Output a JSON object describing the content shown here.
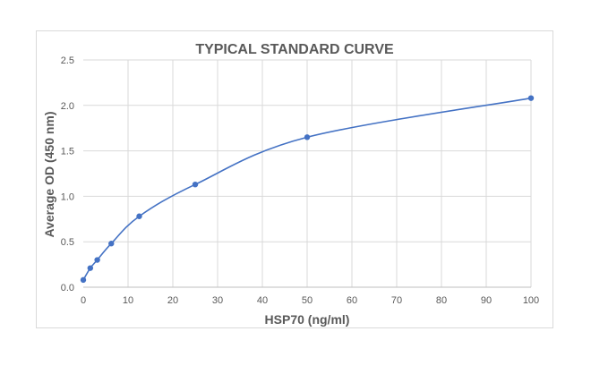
{
  "chart_data": {
    "type": "scatter",
    "title": "TYPICAL STANDARD CURVE",
    "xlabel": "HSP70 (ng/ml)",
    "ylabel": "Average OD (450 nm)",
    "xlim": [
      0,
      100
    ],
    "ylim": [
      0,
      2.5
    ],
    "x_ticks": [
      "0",
      "10",
      "20",
      "30",
      "40",
      "50",
      "60",
      "70",
      "80",
      "90",
      "100"
    ],
    "y_ticks": [
      "0.0",
      "0.5",
      "1.0",
      "1.5",
      "2.0",
      "2.5"
    ],
    "grid": true,
    "smooth_line": true,
    "series": [
      {
        "color": "#4472c4",
        "x": [
          0,
          1.5625,
          3.125,
          6.25,
          12.5,
          25,
          50,
          100
        ],
        "y": [
          0.08,
          0.21,
          0.3,
          0.48,
          0.78,
          1.13,
          1.65,
          2.08
        ]
      }
    ]
  }
}
